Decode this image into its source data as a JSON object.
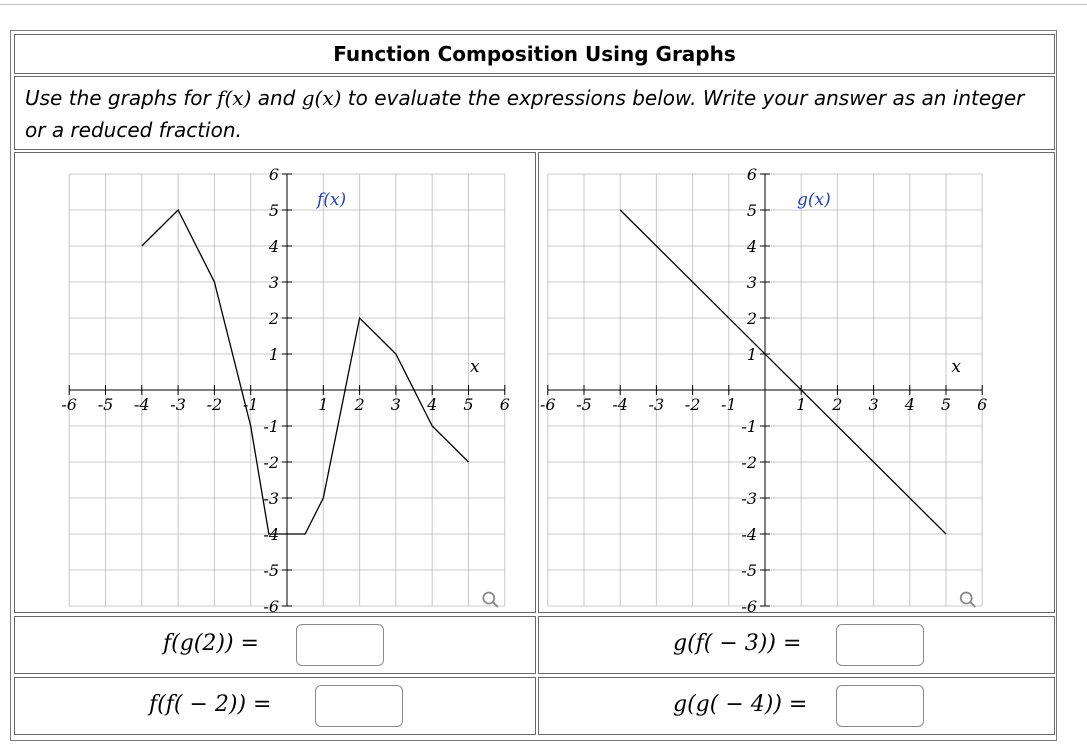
{
  "title": "Function Composition Using Graphs",
  "instructions": {
    "before_f": "Use the graphs for ",
    "f_expr": "f(x)",
    "between": " and ",
    "g_expr": "g(x)",
    "after_g": " to evaluate the expressions below. Write your answer as an integer or a reduced fraction."
  },
  "graphs": [
    {
      "id": "f",
      "label": "f(x)",
      "x_axis_label": "x",
      "xlim": [
        -6,
        6
      ],
      "ylim": [
        -6,
        6
      ],
      "x_ticks": [
        "-6",
        "-5",
        "-4",
        "-3",
        "-2",
        "-1",
        "1",
        "2",
        "3",
        "4",
        "5",
        "6"
      ],
      "y_ticks": [
        "6",
        "5",
        "4",
        "3",
        "2",
        "1",
        "-1",
        "-2",
        "-3",
        "-4",
        "-5",
        "-6"
      ],
      "points": [
        [
          -4,
          4
        ],
        [
          -3,
          5
        ],
        [
          -2,
          3
        ],
        [
          -1,
          -1
        ],
        [
          -0.5,
          -4
        ],
        [
          0.5,
          -4
        ],
        [
          1,
          -3
        ],
        [
          2,
          2
        ],
        [
          3,
          1
        ],
        [
          4,
          -1
        ],
        [
          5,
          -2
        ]
      ],
      "zoom_icon": "magnifier-icon"
    },
    {
      "id": "g",
      "label": "g(x)",
      "x_axis_label": "x",
      "xlim": [
        -6,
        6
      ],
      "ylim": [
        -6,
        6
      ],
      "x_ticks": [
        "-6",
        "-5",
        "-4",
        "-3",
        "-2",
        "-1",
        "1",
        "2",
        "3",
        "4",
        "5",
        "6"
      ],
      "y_ticks": [
        "6",
        "5",
        "4",
        "3",
        "2",
        "1",
        "-1",
        "-2",
        "-3",
        "-4",
        "-5",
        "-6"
      ],
      "points": [
        [
          -4,
          5
        ],
        [
          5,
          -4
        ]
      ],
      "zoom_icon": "magnifier-icon"
    }
  ],
  "questions": [
    {
      "expr": "f(g(2)) =",
      "value": ""
    },
    {
      "expr": "g(f( − 3)) =",
      "value": ""
    },
    {
      "expr": "f(f( − 2)) =",
      "value": ""
    },
    {
      "expr": "g(g( − 4)) =",
      "value": ""
    }
  ]
}
